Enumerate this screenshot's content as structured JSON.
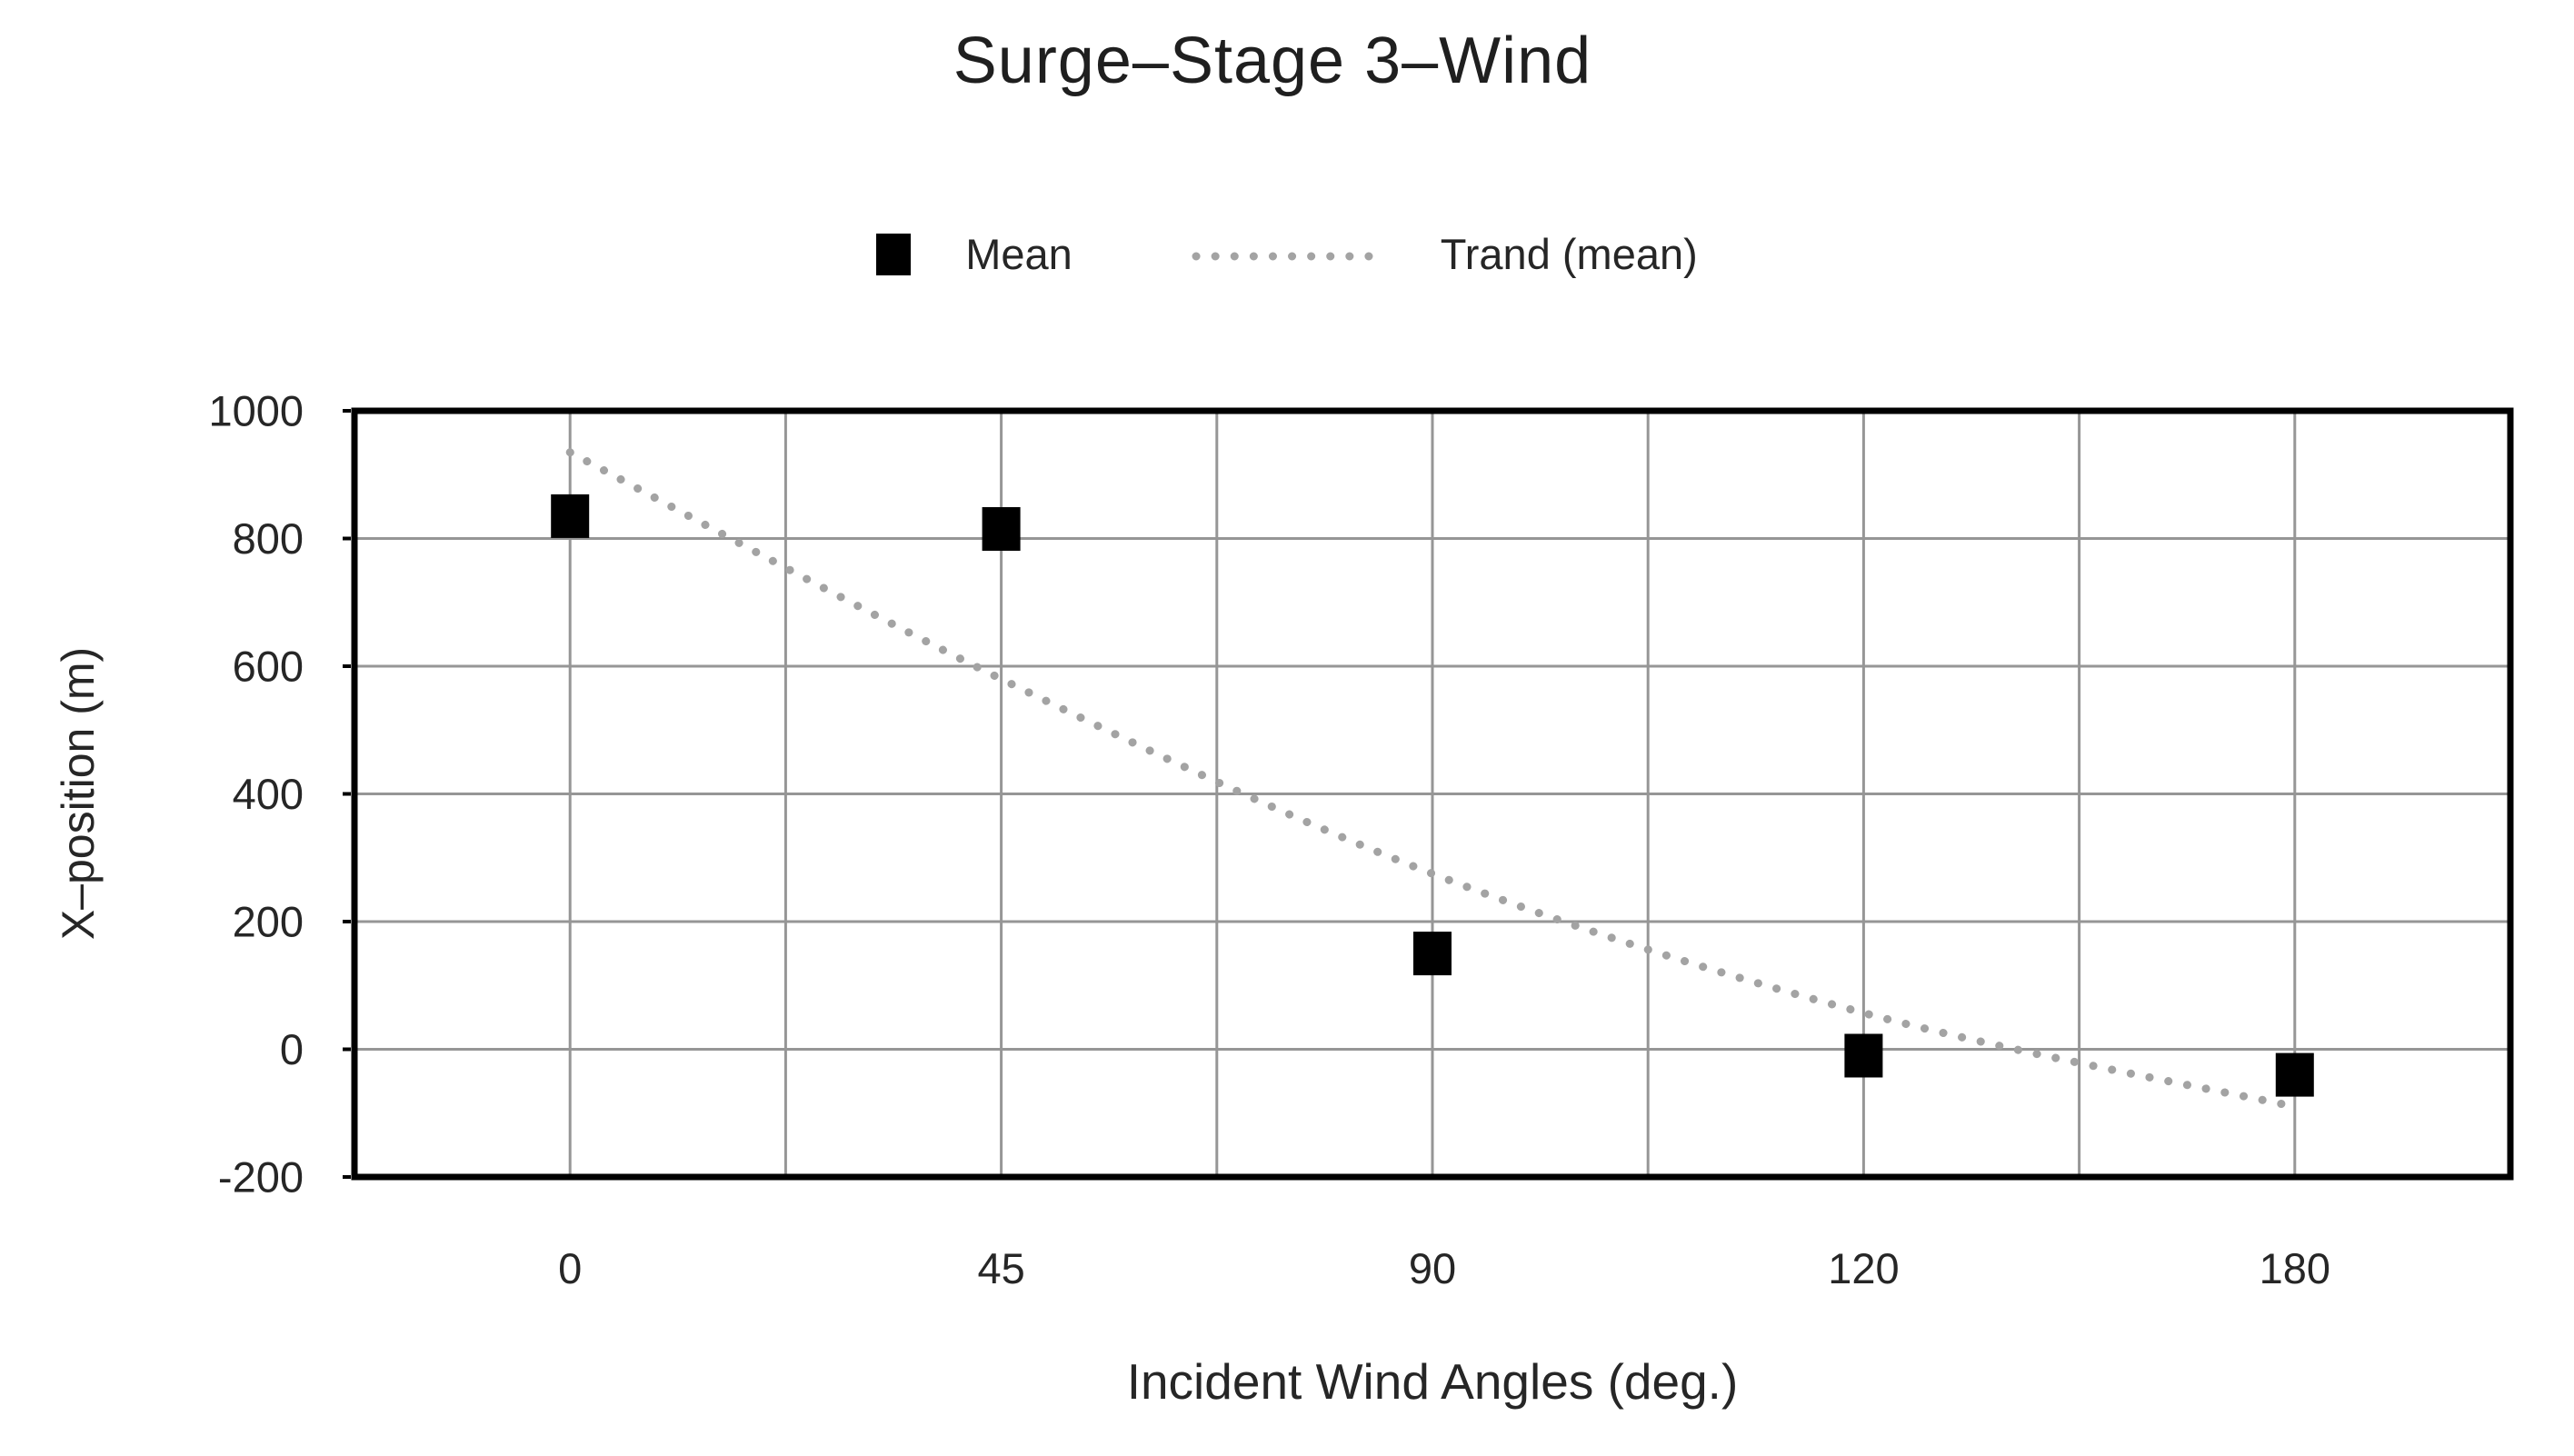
{
  "chart_data": {
    "type": "scatter",
    "title": "Surge–Stage 3–Wind",
    "xlabel": "Incident Wind Angles (deg.)",
    "ylabel": "X–position (m)",
    "categories": [
      "0",
      "45",
      "90",
      "120",
      "180"
    ],
    "series": [
      {
        "name": "Mean",
        "marker": "square",
        "color": "#000000",
        "values": [
          835,
          815,
          150,
          -10,
          -40
        ]
      },
      {
        "name": "Trand (mean)",
        "marker": "dotted-line",
        "color": "#a3a3a3",
        "values": [
          935,
          580,
          275,
          57,
          -90
        ]
      }
    ],
    "y_ticks": [
      "1000",
      "800",
      "600",
      "400",
      "200",
      "0",
      "-200"
    ],
    "ylim": [
      -200,
      1000
    ],
    "ytick_step": 200,
    "grid": true,
    "gridline_color": "#969696",
    "axis_color": "#000000",
    "legend_position": "top-center"
  }
}
